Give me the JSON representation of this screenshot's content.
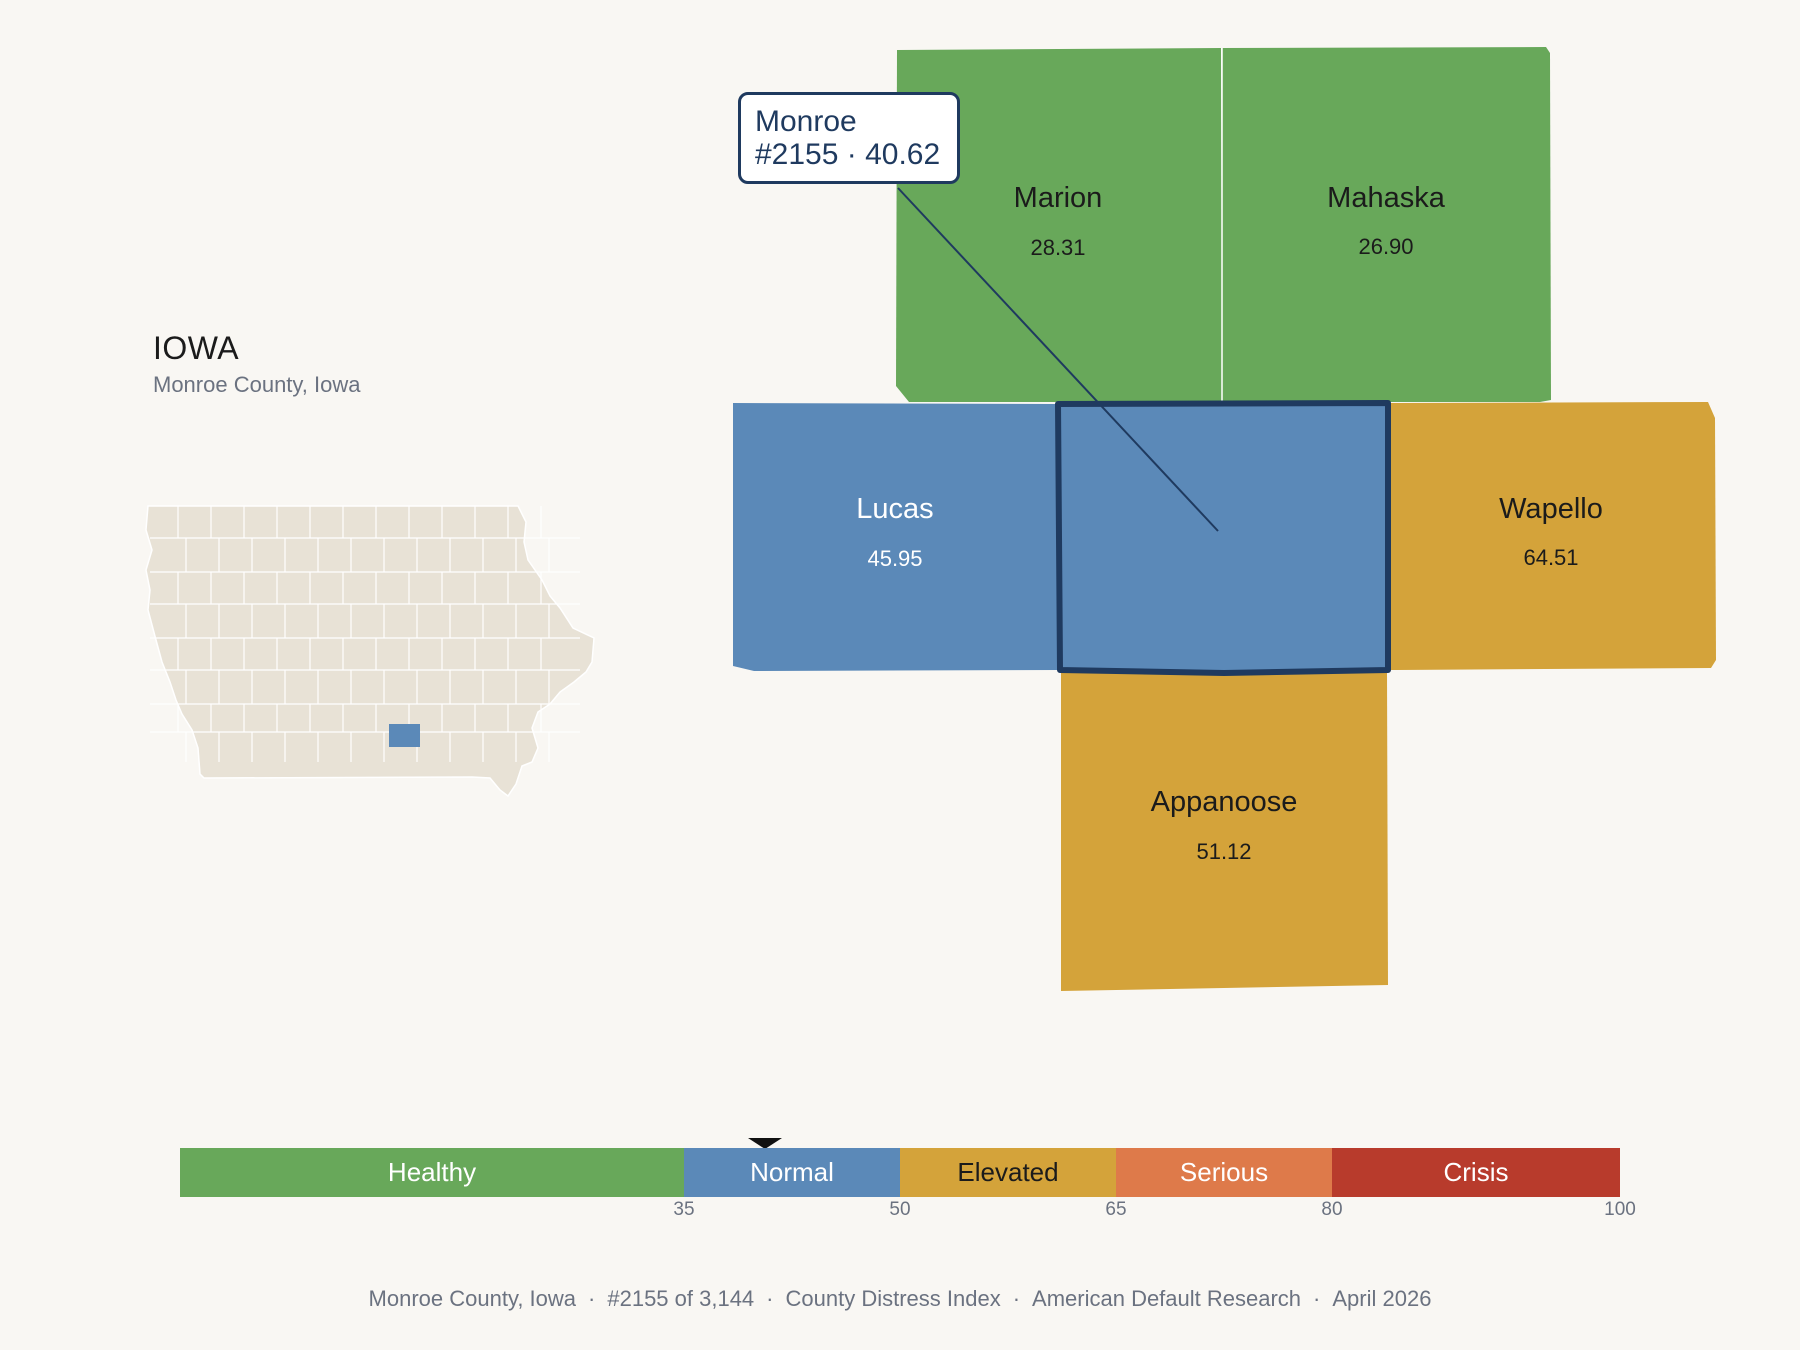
{
  "header": {
    "state": "IOWA",
    "county_label": "Monroe County, Iowa"
  },
  "tooltip": {
    "name": "Monroe",
    "detail": "#2155 · 40.62"
  },
  "counties": {
    "marion": {
      "name": "Marion",
      "value": "28.31",
      "color": "#68a85a"
    },
    "mahaska": {
      "name": "Mahaska",
      "value": "26.90",
      "color": "#68a85a"
    },
    "lucas": {
      "name": "Lucas",
      "value": "45.95",
      "color": "#5b89b8"
    },
    "monroe": {
      "name": "Monroe",
      "value": "40.62",
      "color": "#5b89b8"
    },
    "wapello": {
      "name": "Wapello",
      "value": "64.51",
      "color": "#d4a33a"
    },
    "appanoose": {
      "name": "Appanoose",
      "value": "51.12",
      "color": "#d4a33a"
    }
  },
  "legend": {
    "segments": [
      {
        "label": "Healthy",
        "color": "#68a85a",
        "text_color": "#ffffff"
      },
      {
        "label": "Normal",
        "color": "#5b89b8",
        "text_color": "#ffffff"
      },
      {
        "label": "Elevated",
        "color": "#d4a33a",
        "text_color": "#1b1b1b"
      },
      {
        "label": "Serious",
        "color": "#de7a4a",
        "text_color": "#ffffff"
      },
      {
        "label": "Crisis",
        "color": "#b83b2c",
        "text_color": "#ffffff"
      }
    ],
    "ticks": [
      "35",
      "50",
      "65",
      "80",
      "100"
    ],
    "pointer_value": 40.62
  },
  "footer": {
    "county": "Monroe County, Iowa",
    "rank": "#2155 of 3,144",
    "index": "County Distress Index",
    "source": "American Default Research",
    "date": "April 2026"
  },
  "colors": {
    "highlight_border": "#1f3a5f",
    "inset_fill": "#e8e2d6",
    "inset_highlight": "#5b89b8",
    "background": "#f9f7f3"
  }
}
